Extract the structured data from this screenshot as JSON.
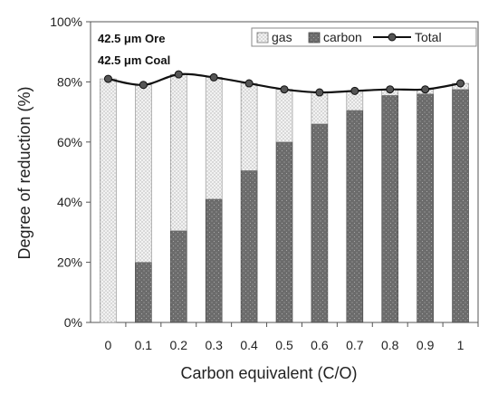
{
  "chart_data": {
    "type": "bar",
    "stacked": true,
    "categories": [
      "0",
      "0.1",
      "0.2",
      "0.3",
      "0.4",
      "0.5",
      "0.6",
      "0.7",
      "0.8",
      "0.9",
      "1"
    ],
    "series": [
      {
        "name": "carbon",
        "kind": "bar",
        "values": [
          0,
          20,
          30.5,
          41,
          50.5,
          60,
          66,
          70.5,
          75.5,
          76,
          77.5
        ],
        "color": "#6b6b6b"
      },
      {
        "name": "gas",
        "kind": "bar",
        "values": [
          81,
          59,
          52,
          40.5,
          29,
          17.5,
          10.5,
          6.5,
          2,
          1.5,
          2
        ],
        "color": "#f2f2f2"
      },
      {
        "name": "Total",
        "kind": "line",
        "values": [
          81,
          79,
          82.5,
          81.5,
          79.5,
          77.5,
          76.5,
          77,
          77.5,
          77.5,
          79.5
        ],
        "color": "#111111"
      }
    ],
    "legend_order": [
      "gas",
      "carbon",
      "Total"
    ],
    "annotations": [
      "42.5 μm Ore",
      "42.5 μm Coal"
    ],
    "xlabel": "Carbon equivalent (C/O)",
    "ylabel": "Degree of reduction (%)",
    "ylim": [
      0,
      100
    ],
    "yticks": [
      "0%",
      "20%",
      "40%",
      "60%",
      "80%",
      "100%"
    ],
    "grid": false,
    "legend_position": "top-right"
  }
}
